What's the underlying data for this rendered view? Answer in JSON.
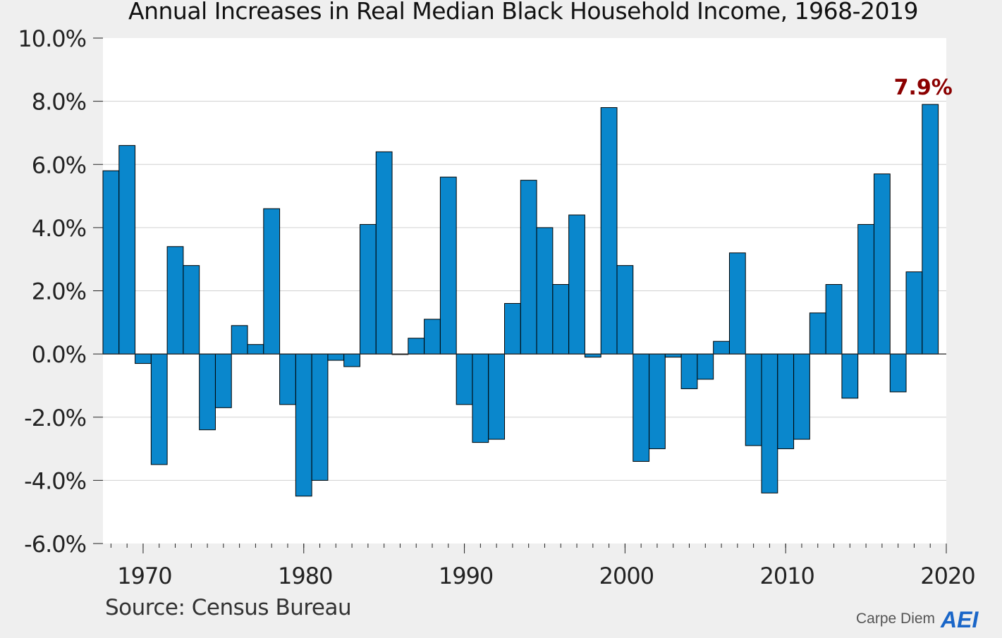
{
  "title": "Annual Increases in Real Median Black Household Income, 1968-2019",
  "source": "Source: Census Bureau",
  "brand": {
    "text": "Carpe Diem",
    "logo_text": "AEI",
    "logo_color": "#1a66c8"
  },
  "colors": {
    "bar": "#0a87cc",
    "bar_stroke": "#000000",
    "highlight_label": "#8b0000",
    "plot_bg": "#ffffff"
  },
  "chart_data": {
    "type": "bar",
    "title": "Annual Increases in Real Median Black Household Income, 1968-2019",
    "xlabel": "",
    "ylabel": "",
    "x": [
      1968,
      1969,
      1970,
      1971,
      1972,
      1973,
      1974,
      1975,
      1976,
      1977,
      1978,
      1979,
      1980,
      1981,
      1982,
      1983,
      1984,
      1985,
      1986,
      1987,
      1988,
      1989,
      1990,
      1991,
      1992,
      1993,
      1994,
      1995,
      1996,
      1997,
      1998,
      1999,
      2000,
      2001,
      2002,
      2003,
      2004,
      2005,
      2006,
      2007,
      2008,
      2009,
      2010,
      2011,
      2012,
      2013,
      2014,
      2015,
      2016,
      2017,
      2018,
      2019
    ],
    "values": [
      5.8,
      6.6,
      -0.3,
      -3.5,
      3.4,
      2.8,
      -2.4,
      -1.7,
      0.9,
      0.3,
      4.6,
      -1.6,
      -4.5,
      -4.0,
      -0.2,
      -0.4,
      4.1,
      6.4,
      0.0,
      0.5,
      1.1,
      5.6,
      -1.6,
      -2.8,
      -2.7,
      1.6,
      5.5,
      4.0,
      2.2,
      4.4,
      -0.1,
      7.8,
      2.8,
      -3.4,
      -3.0,
      -0.1,
      -1.1,
      -0.8,
      0.4,
      3.2,
      -2.9,
      -4.4,
      -3.0,
      -2.7,
      1.3,
      2.2,
      -1.4,
      4.1,
      5.7,
      -1.2,
      2.6,
      7.9
    ],
    "ylim": [
      -6.0,
      10.0
    ],
    "yticks": [
      -6.0,
      -4.0,
      -2.0,
      0.0,
      2.0,
      4.0,
      6.0,
      8.0,
      10.0
    ],
    "ytick_labels": [
      "-6.0%",
      "-4.0%",
      "-2.0%",
      "0.0%",
      "2.0%",
      "4.0%",
      "6.0%",
      "8.0%",
      "10.0%"
    ],
    "xticks": [
      1970,
      1980,
      1990,
      2000,
      2010,
      2020
    ],
    "xtick_labels": [
      "1970",
      "1980",
      "1990",
      "2000",
      "2010",
      "2020"
    ],
    "xlim": [
      1967.5,
      2020
    ],
    "grid": true,
    "annotation": {
      "year": 2019,
      "text": "7.9%"
    }
  }
}
